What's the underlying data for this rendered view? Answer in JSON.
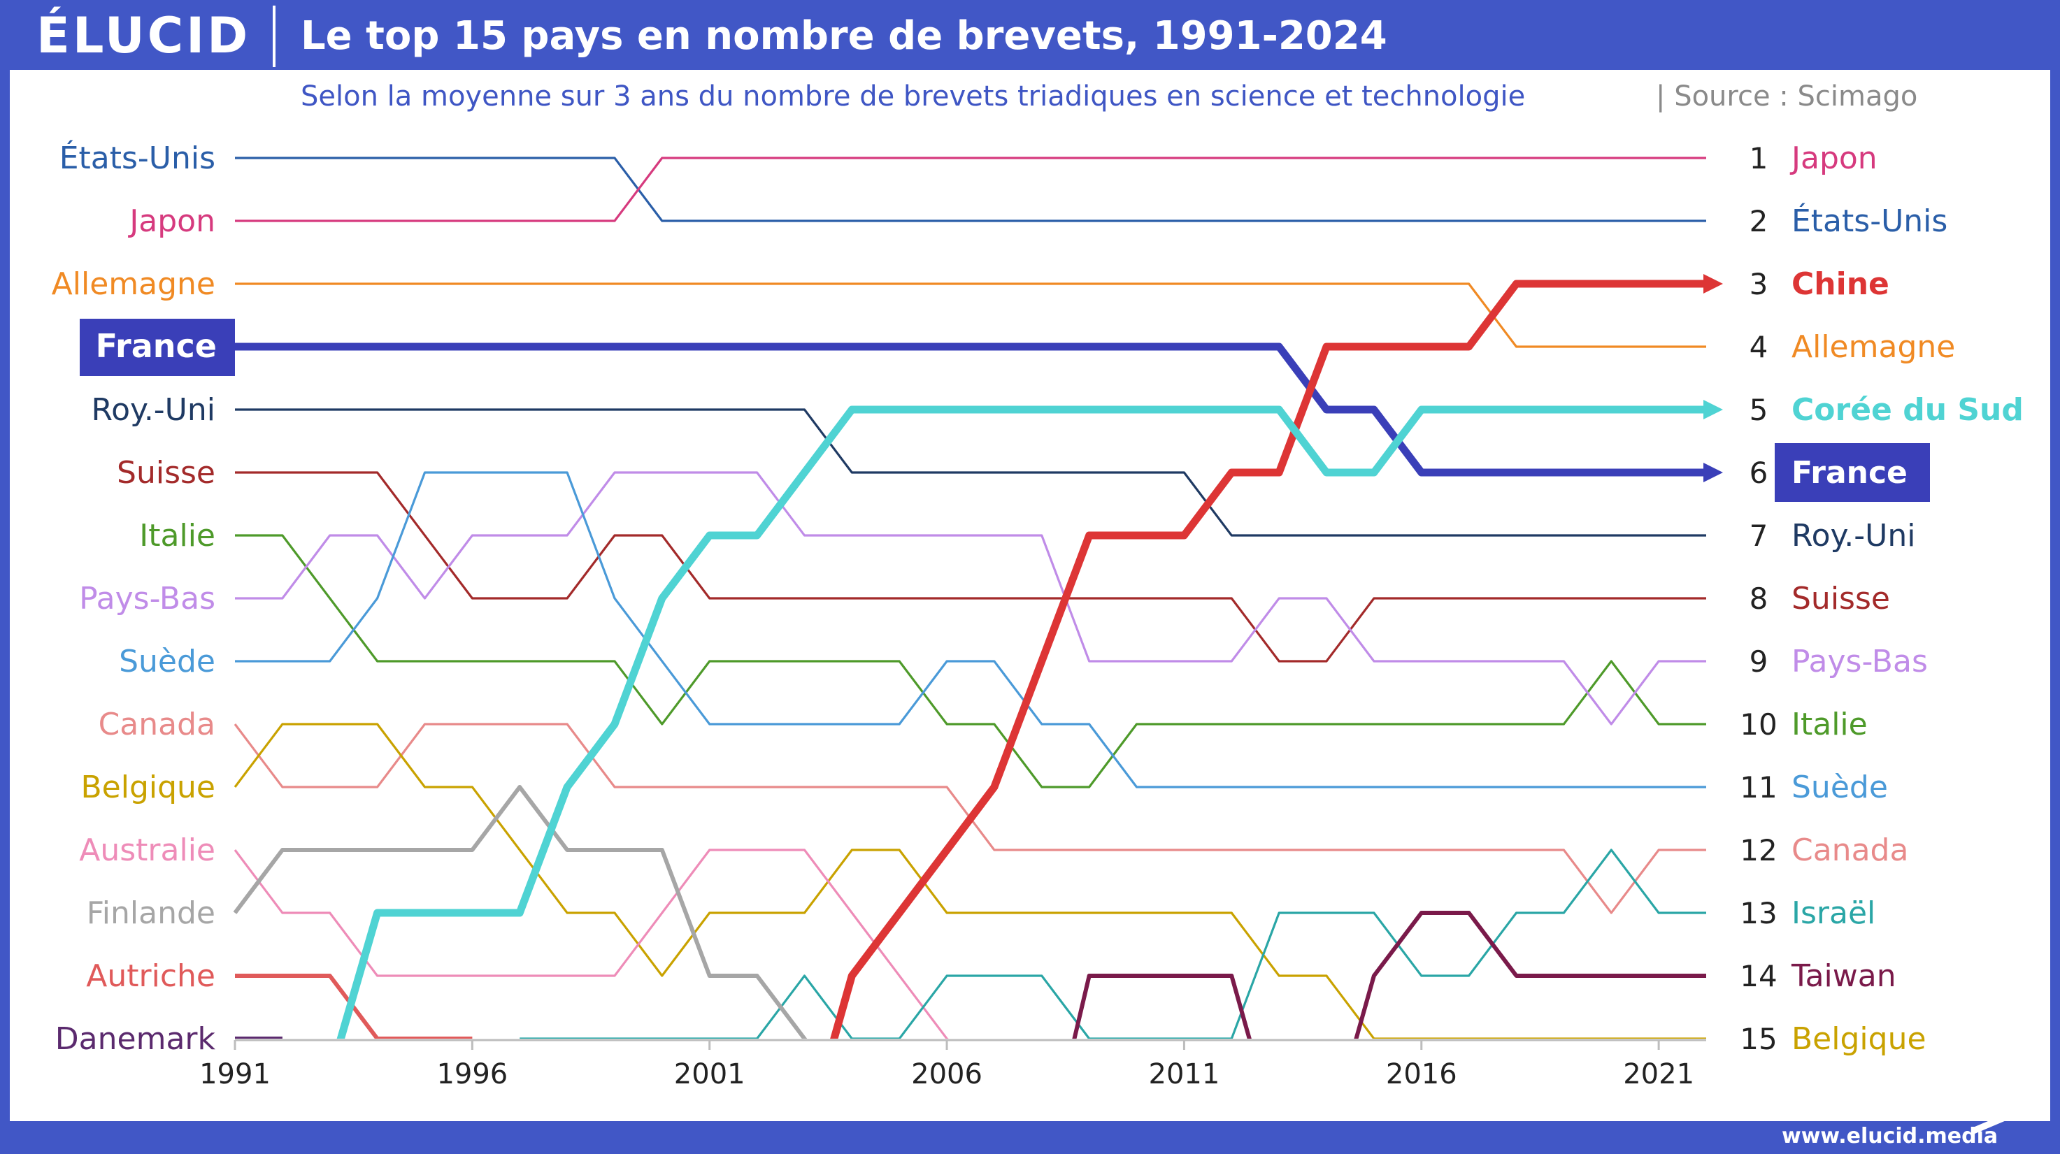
{
  "header": {
    "logo": "ÉLUCID",
    "title": "Le top 15 pays en nombre de brevets, 1991-2024",
    "subtitle": "Selon la moyenne sur 3 ans du nombre de brevets triadiques en science et technologie",
    "source": "|  Source : Scimago"
  },
  "footer": {
    "url": "www.elucid.media"
  },
  "colors": {
    "frame": "#4157c6",
    "highlight_bg": "#3a3fb8",
    "axis": "#bdbdbd"
  },
  "chart_data": {
    "type": "bump",
    "x_start": 1991,
    "x_end": 2022,
    "xticks": [
      "1991",
      "1996",
      "2001",
      "2006",
      "2011",
      "2016",
      "2021"
    ],
    "rank_range": [
      1,
      15
    ],
    "left_labels": [
      {
        "name": "États-Unis",
        "rank": 1
      },
      {
        "name": "Japon",
        "rank": 2
      },
      {
        "name": "Allemagne",
        "rank": 3
      },
      {
        "name": "France",
        "rank": 4,
        "highlight": true
      },
      {
        "name": "Roy.-Uni",
        "rank": 5
      },
      {
        "name": "Suisse",
        "rank": 6
      },
      {
        "name": "Italie",
        "rank": 7
      },
      {
        "name": "Pays-Bas",
        "rank": 8
      },
      {
        "name": "Suède",
        "rank": 9
      },
      {
        "name": "Canada",
        "rank": 10
      },
      {
        "name": "Belgique",
        "rank": 11
      },
      {
        "name": "Australie",
        "rank": 12
      },
      {
        "name": "Finlande",
        "rank": 13
      },
      {
        "name": "Autriche",
        "rank": 14
      },
      {
        "name": "Danemark",
        "rank": 15
      }
    ],
    "right_labels": [
      {
        "rank": "1",
        "name": "Japon"
      },
      {
        "rank": "2",
        "name": "États-Unis"
      },
      {
        "rank": "3",
        "name": "Chine",
        "bold": true
      },
      {
        "rank": "4",
        "name": "Allemagne"
      },
      {
        "rank": "5",
        "name": "Corée du Sud",
        "bold": true
      },
      {
        "rank": "6",
        "name": "France",
        "highlight": true
      },
      {
        "rank": "7",
        "name": "Roy.-Uni"
      },
      {
        "rank": "8",
        "name": "Suisse"
      },
      {
        "rank": "9",
        "name": "Pays-Bas"
      },
      {
        "rank": "10",
        "name": "Italie"
      },
      {
        "rank": "11",
        "name": "Suède"
      },
      {
        "rank": "12",
        "name": "Canada"
      },
      {
        "rank": "13",
        "name": "Israël"
      },
      {
        "rank": "14",
        "name": "Taiwan"
      },
      {
        "rank": "15",
        "name": "Belgique"
      }
    ],
    "series": [
      {
        "name": "États-Unis",
        "color": "#2a5ea8",
        "weight": "normal",
        "points": [
          [
            1991,
            1
          ],
          [
            1999,
            1
          ],
          [
            2000,
            2
          ],
          [
            2022,
            2
          ]
        ]
      },
      {
        "name": "Japon",
        "color": "#d63a7e",
        "weight": "normal",
        "points": [
          [
            1991,
            2
          ],
          [
            1999,
            2
          ],
          [
            2000,
            1
          ],
          [
            2022,
            1
          ]
        ]
      },
      {
        "name": "Allemagne",
        "color": "#f08a24",
        "weight": "normal",
        "points": [
          [
            1991,
            3
          ],
          [
            2017,
            3
          ],
          [
            2018,
            4
          ],
          [
            2022,
            4
          ]
        ]
      },
      {
        "name": "France",
        "color": "#3a3fb8",
        "weight": "heavy",
        "arrow": true,
        "points": [
          [
            1991,
            4
          ],
          [
            2013,
            4
          ],
          [
            2014,
            5
          ],
          [
            2015,
            5
          ],
          [
            2016,
            6
          ],
          [
            2022,
            6
          ]
        ]
      },
      {
        "name": "Roy.-Uni",
        "color": "#1f3a63",
        "weight": "normal",
        "points": [
          [
            1991,
            5
          ],
          [
            2003,
            5
          ],
          [
            2004,
            6
          ],
          [
            2011,
            6
          ],
          [
            2012,
            7
          ],
          [
            2022,
            7
          ]
        ]
      },
      {
        "name": "Suisse",
        "color": "#a32a2a",
        "weight": "normal",
        "points": [
          [
            1991,
            6
          ],
          [
            1994,
            6
          ],
          [
            1996,
            8
          ],
          [
            1998,
            8
          ],
          [
            1999,
            7
          ],
          [
            2000,
            7
          ],
          [
            2001,
            8
          ],
          [
            2012,
            8
          ],
          [
            2013,
            9
          ],
          [
            2014,
            9
          ],
          [
            2015,
            8
          ],
          [
            2022,
            8
          ]
        ]
      },
      {
        "name": "Italie",
        "color": "#4e9a2a",
        "weight": "normal",
        "points": [
          [
            1991,
            7
          ],
          [
            1992,
            7
          ],
          [
            1994,
            9
          ],
          [
            1999,
            9
          ],
          [
            2000,
            10
          ],
          [
            2001,
            9
          ],
          [
            2005,
            9
          ],
          [
            2006,
            10
          ],
          [
            2007,
            10
          ],
          [
            2008,
            11
          ],
          [
            2009,
            11
          ],
          [
            2010,
            10
          ],
          [
            2019,
            10
          ],
          [
            2020,
            9
          ],
          [
            2021,
            10
          ],
          [
            2022,
            10
          ]
        ]
      },
      {
        "name": "Pays-Bas",
        "color": "#c08ce8",
        "weight": "normal",
        "points": [
          [
            1991,
            8
          ],
          [
            1992,
            8
          ],
          [
            1993,
            7
          ],
          [
            1994,
            7
          ],
          [
            1995,
            8
          ],
          [
            1996,
            7
          ],
          [
            1998,
            7
          ],
          [
            1999,
            6
          ],
          [
            2002,
            6
          ],
          [
            2003,
            7
          ],
          [
            2008,
            7
          ],
          [
            2009,
            9
          ],
          [
            2012,
            9
          ],
          [
            2013,
            8
          ],
          [
            2014,
            8
          ],
          [
            2015,
            9
          ],
          [
            2019,
            9
          ],
          [
            2020,
            10
          ],
          [
            2021,
            9
          ],
          [
            2022,
            9
          ]
        ]
      },
      {
        "name": "Suède",
        "color": "#4a9ad8",
        "weight": "normal",
        "points": [
          [
            1991,
            9
          ],
          [
            1993,
            9
          ],
          [
            1994,
            8
          ],
          [
            1995,
            6
          ],
          [
            1998,
            6
          ],
          [
            1999,
            8
          ],
          [
            2001,
            10
          ],
          [
            2005,
            10
          ],
          [
            2006,
            9
          ],
          [
            2007,
            9
          ],
          [
            2008,
            10
          ],
          [
            2009,
            10
          ],
          [
            2010,
            11
          ],
          [
            2022,
            11
          ]
        ]
      },
      {
        "name": "Canada",
        "color": "#e88a8a",
        "weight": "normal",
        "points": [
          [
            1991,
            10
          ],
          [
            1992,
            11
          ],
          [
            1994,
            11
          ],
          [
            1995,
            10
          ],
          [
            1998,
            10
          ],
          [
            1999,
            11
          ],
          [
            2006,
            11
          ],
          [
            2007,
            12
          ],
          [
            2019,
            12
          ],
          [
            2020,
            13
          ],
          [
            2021,
            12
          ],
          [
            2022,
            12
          ]
        ]
      },
      {
        "name": "Belgique",
        "color": "#c9a200",
        "weight": "normal",
        "points": [
          [
            1991,
            11
          ],
          [
            1992,
            10
          ],
          [
            1994,
            10
          ],
          [
            1995,
            11
          ],
          [
            1996,
            11
          ],
          [
            1998,
            13
          ],
          [
            1999,
            13
          ],
          [
            2000,
            14
          ],
          [
            2001,
            13
          ],
          [
            2003,
            13
          ],
          [
            2004,
            12
          ],
          [
            2005,
            12
          ],
          [
            2006,
            13
          ],
          [
            2012,
            13
          ],
          [
            2013,
            14
          ],
          [
            2014,
            14
          ],
          [
            2015,
            15
          ],
          [
            2022,
            15
          ]
        ]
      },
      {
        "name": "Australie",
        "color": "#ee8cb8",
        "weight": "normal",
        "points": [
          [
            1991,
            12
          ],
          [
            1992,
            13
          ],
          [
            1993,
            13
          ],
          [
            1994,
            14
          ],
          [
            1999,
            14
          ],
          [
            2001,
            12
          ],
          [
            2003,
            12
          ],
          [
            2006,
            15
          ],
          [
            2007,
            15.6
          ]
        ]
      },
      {
        "name": "Finlande",
        "color": "#a6a6a6",
        "weight": "medium",
        "points": [
          [
            1991,
            13
          ],
          [
            1992,
            12
          ],
          [
            1996,
            12
          ],
          [
            1997,
            11
          ],
          [
            1998,
            12
          ],
          [
            2000,
            12
          ],
          [
            2001,
            14
          ],
          [
            2002,
            14
          ],
          [
            2003,
            15
          ],
          [
            2003.6,
            15.6
          ]
        ]
      },
      {
        "name": "Autriche",
        "color": "#e05a5a",
        "weight": "medium",
        "points": [
          [
            1991,
            14
          ],
          [
            1993,
            14
          ],
          [
            1994,
            15
          ],
          [
            1996,
            15
          ]
        ]
      },
      {
        "name": "Danemark",
        "color": "#5b2a6e",
        "weight": "medium",
        "points": [
          [
            1991,
            15
          ],
          [
            1992,
            15
          ]
        ]
      },
      {
        "name": "Chine",
        "color": "#dd3535",
        "weight": "heavy",
        "arrow": true,
        "points": [
          [
            2003.4,
            15.6
          ],
          [
            2004,
            14
          ],
          [
            2005,
            13
          ],
          [
            2006,
            12
          ],
          [
            2007,
            11
          ],
          [
            2009,
            7
          ],
          [
            2011,
            7
          ],
          [
            2012,
            6
          ],
          [
            2013,
            6
          ],
          [
            2014,
            4
          ],
          [
            2017,
            4
          ],
          [
            2018,
            3
          ],
          [
            2022,
            3
          ]
        ]
      },
      {
        "name": "Corée du Sud",
        "color": "#4fd3d3",
        "weight": "heavy",
        "arrow": true,
        "points": [
          [
            1993,
            15.6
          ],
          [
            1994,
            13
          ],
          [
            1997,
            13
          ],
          [
            1998,
            11
          ],
          [
            1999,
            10
          ],
          [
            2000,
            8
          ],
          [
            2001,
            7
          ],
          [
            2002,
            7
          ],
          [
            2004,
            5
          ],
          [
            2013,
            5
          ],
          [
            2014,
            6
          ],
          [
            2015,
            6
          ],
          [
            2016,
            5
          ],
          [
            2022,
            5
          ]
        ]
      },
      {
        "name": "Israël",
        "color": "#2aa6a6",
        "weight": "normal",
        "points": [
          [
            1997,
            15
          ],
          [
            2002,
            15
          ],
          [
            2003,
            14
          ],
          [
            2004,
            15
          ],
          [
            2005,
            15
          ],
          [
            2006,
            14
          ],
          [
            2008,
            14
          ],
          [
            2009,
            15
          ],
          [
            2012,
            15
          ],
          [
            2013,
            13
          ],
          [
            2015,
            13
          ],
          [
            2016,
            14
          ],
          [
            2017,
            14
          ],
          [
            2018,
            13
          ],
          [
            2019,
            13
          ],
          [
            2020,
            12
          ],
          [
            2021,
            13
          ],
          [
            2022,
            13
          ]
        ]
      },
      {
        "name": "Taiwan",
        "color": "#7a1a4a",
        "weight": "medium",
        "points": [
          [
            2008.5,
            15.6
          ],
          [
            2009,
            14
          ],
          [
            2012,
            14
          ],
          [
            2012.6,
            15.6
          ],
          [
            2014.4,
            15.6
          ],
          [
            2015,
            14
          ],
          [
            2016,
            13
          ],
          [
            2017,
            13
          ],
          [
            2018,
            14
          ],
          [
            2022,
            14
          ]
        ]
      }
    ]
  }
}
